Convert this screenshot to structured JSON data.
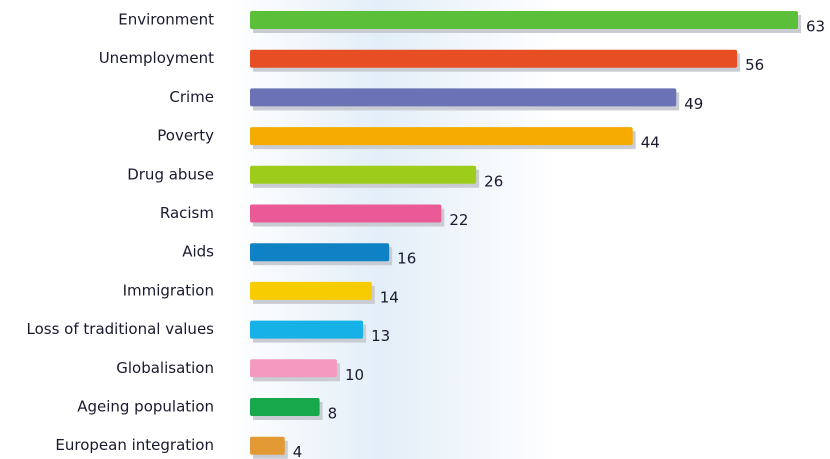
{
  "chart_data": {
    "type": "bar",
    "orientation": "horizontal",
    "categories": [
      "Environment",
      "Unemployment",
      "Crime",
      "Poverty",
      "Drug abuse",
      "Racism",
      "Aids",
      "Immigration",
      "Loss of traditional values",
      "Globalisation",
      "Ageing population",
      "European integration"
    ],
    "values": [
      63,
      56,
      49,
      44,
      26,
      22,
      16,
      14,
      13,
      10,
      8,
      4
    ],
    "colors": [
      "#5bbf3a",
      "#e84e24",
      "#6b72b5",
      "#f5ab00",
      "#9dcd1a",
      "#ea5a96",
      "#0f82c6",
      "#f7cc00",
      "#16b1e6",
      "#f49ac0",
      "#16a84a",
      "#e39a35"
    ]
  }
}
